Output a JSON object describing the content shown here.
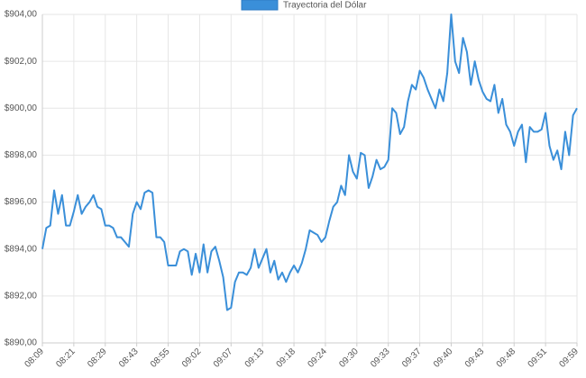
{
  "chart_data": {
    "type": "line",
    "categories": [
      "08:09",
      null,
      null,
      null,
      null,
      null,
      null,
      null,
      "08:21",
      null,
      null,
      null,
      null,
      null,
      null,
      null,
      "08:29",
      null,
      null,
      null,
      null,
      null,
      null,
      null,
      "08:43",
      null,
      null,
      null,
      null,
      null,
      null,
      null,
      "08:55",
      null,
      null,
      null,
      null,
      null,
      null,
      null,
      "09:02",
      null,
      null,
      null,
      null,
      null,
      null,
      null,
      "09:07",
      null,
      null,
      null,
      null,
      null,
      null,
      null,
      "09:13",
      null,
      null,
      null,
      null,
      null,
      null,
      null,
      "09:18",
      null,
      null,
      null,
      null,
      null,
      null,
      null,
      "09:24",
      null,
      null,
      null,
      null,
      null,
      null,
      null,
      "09:30",
      null,
      null,
      null,
      null,
      null,
      null,
      null,
      "09:33",
      null,
      null,
      null,
      null,
      null,
      null,
      null,
      "09:37",
      null,
      null,
      null,
      null,
      null,
      null,
      null,
      "09:40",
      null,
      null,
      null,
      null,
      null,
      null,
      null,
      "09:43",
      null,
      null,
      null,
      null,
      null,
      null,
      null,
      "09:48",
      null,
      null,
      null,
      null,
      null,
      null,
      null,
      "09:51",
      null,
      null,
      null,
      null,
      null,
      null,
      null,
      "09:59"
    ],
    "series": [
      {
        "name": "Trayectoria del Dólar",
        "color": "#3a8fd9",
        "values": [
          894.0,
          894.9,
          895.0,
          896.5,
          895.5,
          896.3,
          895.0,
          895.0,
          895.6,
          896.3,
          895.5,
          895.8,
          896.0,
          896.3,
          895.8,
          895.7,
          895.0,
          895.0,
          894.9,
          894.5,
          894.5,
          894.3,
          894.1,
          895.5,
          896.0,
          895.7,
          896.4,
          896.5,
          896.4,
          894.5,
          894.5,
          894.3,
          893.3,
          893.3,
          893.3,
          893.9,
          894.0,
          893.9,
          892.9,
          893.8,
          893.0,
          894.2,
          893.0,
          893.9,
          894.1,
          893.5,
          892.8,
          891.4,
          891.5,
          892.6,
          893.0,
          893.0,
          892.9,
          893.2,
          894.0,
          893.2,
          893.6,
          894.0,
          893.0,
          893.5,
          892.7,
          893.0,
          892.6,
          893.0,
          893.3,
          893.0,
          893.4,
          894.0,
          894.8,
          894.7,
          894.6,
          894.3,
          894.5,
          895.2,
          895.8,
          896.0,
          896.7,
          896.3,
          898.0,
          897.3,
          897.0,
          898.1,
          898.0,
          896.6,
          897.1,
          897.8,
          897.4,
          897.5,
          897.8,
          900.0,
          899.8,
          898.9,
          899.2,
          900.3,
          901.0,
          900.8,
          901.6,
          901.3,
          900.8,
          900.4,
          900.0,
          900.8,
          900.3,
          901.5,
          904.0,
          902.0,
          901.5,
          903.0,
          902.4,
          901.0,
          902.0,
          901.2,
          900.7,
          900.4,
          900.3,
          901.0,
          899.8,
          900.4,
          899.3,
          899.0,
          898.4,
          899.0,
          899.3,
          897.7,
          899.2,
          899.0,
          899.0,
          899.1,
          899.8,
          898.4,
          897.8,
          898.2,
          897.4,
          899.0,
          898.0,
          899.7,
          900.0
        ]
      }
    ],
    "ylim": [
      890,
      904
    ],
    "yticks": [
      {
        "value": 890,
        "label": "$890,00"
      },
      {
        "value": 892,
        "label": "$892,00"
      },
      {
        "value": 894,
        "label": "$894,00"
      },
      {
        "value": 896,
        "label": "$896,00"
      },
      {
        "value": 898,
        "label": "$898,00"
      },
      {
        "value": 900,
        "label": "$900,00"
      },
      {
        "value": 902,
        "label": "$902,00"
      },
      {
        "value": 904,
        "label": "$904,00"
      }
    ],
    "grid": true
  }
}
